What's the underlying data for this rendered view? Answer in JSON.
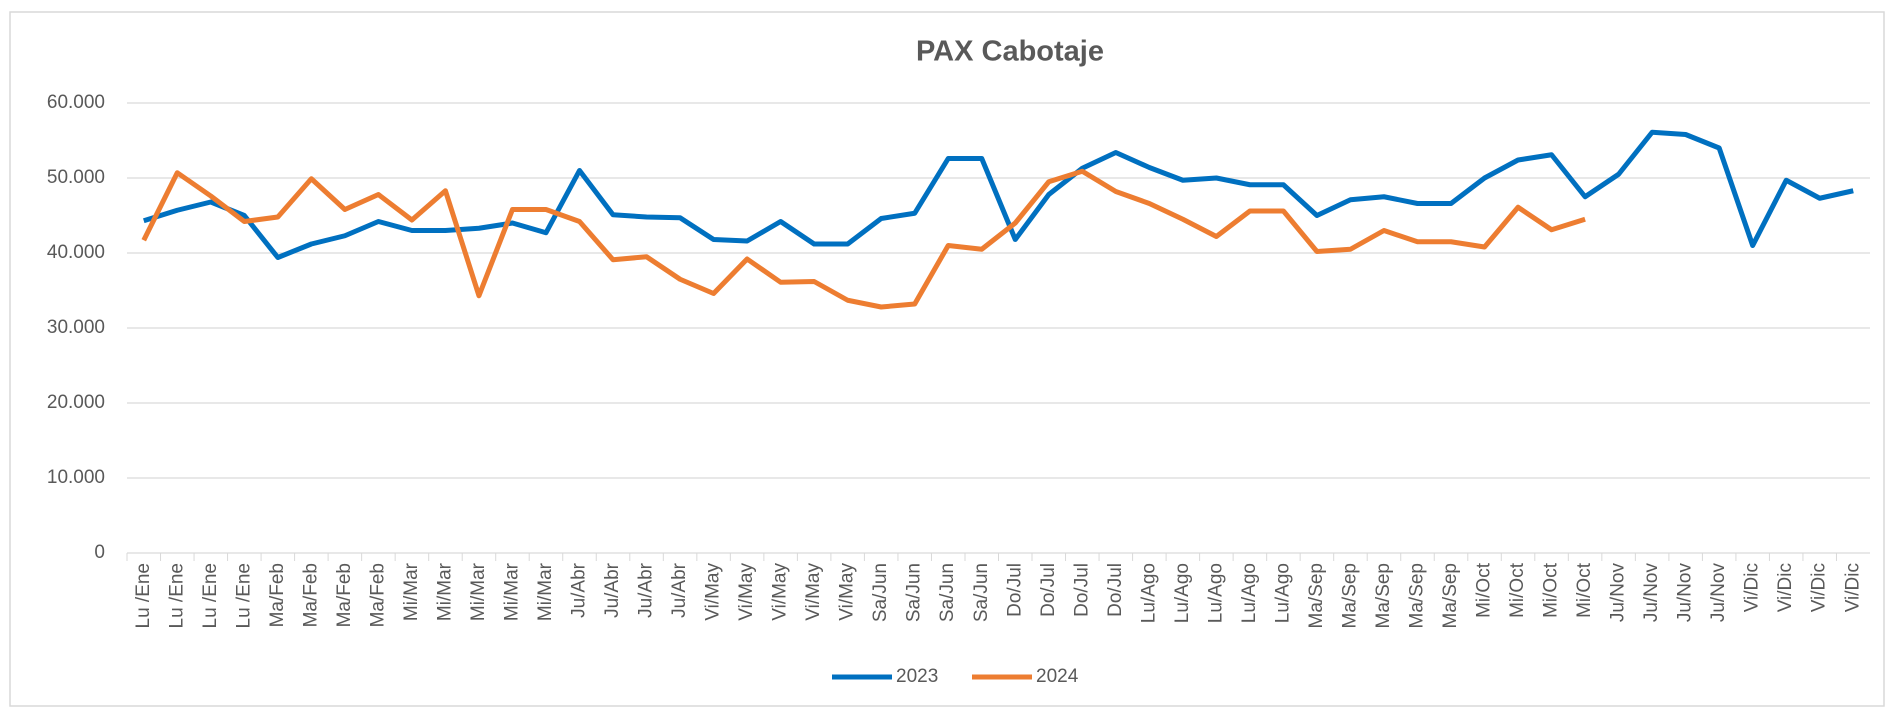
{
  "chart_data": {
    "type": "line",
    "title": "PAX Cabotaje",
    "categories": [
      "Lu /Ene",
      "Lu /Ene",
      "Lu /Ene",
      "Lu /Ene",
      "Ma/Feb",
      "Ma/Feb",
      "Ma/Feb",
      "Ma/Feb",
      "Mi/Mar",
      "Mi/Mar",
      "Mi/Mar",
      "Mi/Mar",
      "Mi/Mar",
      "Ju/Abr",
      "Ju/Abr",
      "Ju/Abr",
      "Ju/Abr",
      "Vi/May",
      "Vi/May",
      "Vi/May",
      "Vi/May",
      "Vi/May",
      "Sa/Jun",
      "Sa/Jun",
      "Sa/Jun",
      "Sa/Jun",
      "Do/Jul",
      "Do/Jul",
      "Do/Jul",
      "Do/Jul",
      "Lu/Ago",
      "Lu/Ago",
      "Lu/Ago",
      "Lu/Ago",
      "Lu/Ago",
      "Ma/Sep",
      "Ma/Sep",
      "Ma/Sep",
      "Ma/Sep",
      "Ma/Sep",
      "Mi/Oct",
      "Mi/Oct",
      "Mi/Oct",
      "Mi/Oct",
      "Ju/Nov",
      "Ju/Nov",
      "Ju/Nov",
      "Ju/Nov",
      "Vi/Dic",
      "Vi/Dic",
      "Vi/Dic",
      "Vi/Dic"
    ],
    "series": [
      {
        "name": "2023",
        "color": "#0070c0",
        "values": [
          44300,
          45700,
          46800,
          45000,
          39400,
          41200,
          42300,
          44200,
          43000,
          43000,
          43300,
          44000,
          42700,
          51000,
          45100,
          44800,
          44700,
          41800,
          41600,
          44200,
          41200,
          41200,
          44600,
          45300,
          52600,
          52600,
          41800,
          47800,
          51300,
          53400,
          51400,
          49700,
          50000,
          49100,
          49100,
          45000,
          47100,
          47500,
          46600,
          46600,
          50000,
          52400,
          53100,
          47500,
          50500,
          56100,
          55800,
          54000,
          41000,
          49700,
          47300,
          48300
        ]
      },
      {
        "name": "2024",
        "color": "#ed7d31",
        "values": [
          41700,
          50700,
          47600,
          44200,
          44800,
          49900,
          45800,
          47800,
          44400,
          48300,
          34300,
          45800,
          45800,
          44200,
          39100,
          39500,
          36500,
          34600,
          39200,
          36100,
          36200,
          33700,
          32800,
          33200,
          41000,
          40500,
          44000,
          49500,
          50900,
          48200,
          46600,
          44500,
          42200,
          45600,
          45600,
          40200,
          40500,
          43000,
          41500,
          41500,
          40800,
          46100,
          43100,
          44500,
          null,
          null,
          null,
          null,
          null,
          null,
          null,
          null
        ]
      }
    ],
    "ylim": [
      0,
      60000
    ],
    "yticks": [
      0,
      {
        "value": 10000,
        "label": "10.000"
      },
      {
        "value": 20000,
        "label": "20.000"
      },
      {
        "value": 30000,
        "label": "30.000"
      },
      {
        "value": 40000,
        "label": "40.000"
      },
      {
        "value": 50000,
        "label": "50.000"
      },
      {
        "value": 60000,
        "label": "60.000"
      }
    ],
    "grid": true
  }
}
